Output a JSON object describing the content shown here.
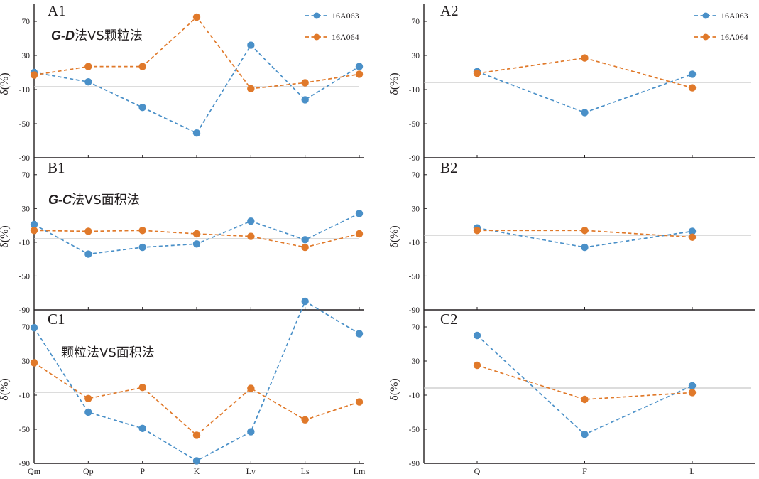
{
  "colors": {
    "s1": "#4a90c8",
    "s2": "#e0792a",
    "axis": "#231f20",
    "zero": "#c8c8c8"
  },
  "legend": [
    "16A063",
    "16A064"
  ],
  "y_axis_label": "δ(%)",
  "y_ticks": [
    "70",
    "30",
    "-10",
    "-50",
    "-90"
  ],
  "chart_data": [
    {
      "type": "line",
      "panel": "A1",
      "title": "A1",
      "annotation": {
        "italic": "G-D",
        "text": "法VS颗粒法"
      },
      "categories": [
        "Qm",
        "Qp",
        "P",
        "K",
        "Lv",
        "Ls",
        "Lm"
      ],
      "ylim": [
        -90,
        90
      ],
      "ylabel": "δ(%)",
      "legend": "top-right",
      "series": [
        {
          "name": "16A063",
          "values": [
            10,
            -1,
            -31,
            -61,
            42,
            -22,
            17
          ]
        },
        {
          "name": "16A064",
          "values": [
            7,
            17,
            17,
            75,
            -9,
            -2,
            8
          ]
        }
      ]
    },
    {
      "type": "line",
      "panel": "A2",
      "title": "A2",
      "categories": [
        "Q",
        "F",
        "L"
      ],
      "ylim": [
        -90,
        90
      ],
      "ylabel": "δ(%)",
      "legend": "top-right",
      "series": [
        {
          "name": "16A063",
          "values": [
            11,
            -37,
            8
          ]
        },
        {
          "name": "16A064",
          "values": [
            9,
            27,
            -8
          ]
        }
      ]
    },
    {
      "type": "line",
      "panel": "B1",
      "title": "B1",
      "annotation": {
        "italic": "G-C",
        "text": "法VS面积法"
      },
      "categories": [
        "Qm",
        "Qp",
        "P",
        "K",
        "Lv",
        "Ls",
        "Lm"
      ],
      "ylim": [
        -90,
        90
      ],
      "ylabel": "δ(%)",
      "series": [
        {
          "name": "16A063",
          "values": [
            11,
            -24,
            -16,
            -12,
            15,
            -7,
            24
          ]
        },
        {
          "name": "16A064",
          "values": [
            4,
            3,
            4,
            0,
            -3,
            -16,
            0
          ]
        }
      ]
    },
    {
      "type": "line",
      "panel": "B2",
      "title": "B2",
      "categories": [
        "Q",
        "F",
        "L"
      ],
      "ylim": [
        -90,
        90
      ],
      "ylabel": "δ(%)",
      "series": [
        {
          "name": "16A063",
          "values": [
            7,
            -16,
            3
          ]
        },
        {
          "name": "16A064",
          "values": [
            4,
            4,
            -4
          ]
        }
      ]
    },
    {
      "type": "line",
      "panel": "C1",
      "title": "C1",
      "annotation": {
        "italic": "",
        "text": "颗粒法VS面积法"
      },
      "categories": [
        "Qm",
        "Qp",
        "P",
        "K",
        "Lv",
        "Ls",
        "Lm"
      ],
      "ylim": [
        -90,
        90
      ],
      "ylabel": "δ(%)",
      "series": [
        {
          "name": "16A063",
          "values": [
            69,
            -30,
            -49,
            -87,
            -53,
            100,
            62
          ]
        },
        {
          "name": "16A064",
          "values": [
            28,
            -14,
            -1,
            -57,
            -2,
            -39,
            -18
          ]
        }
      ]
    },
    {
      "type": "line",
      "panel": "C2",
      "title": "C2",
      "categories": [
        "Q",
        "F",
        "L"
      ],
      "ylim": [
        -90,
        90
      ],
      "ylabel": "δ(%)",
      "series": [
        {
          "name": "16A063",
          "values": [
            60,
            -56,
            1
          ]
        },
        {
          "name": "16A064",
          "values": [
            25,
            -15,
            -7
          ]
        }
      ]
    }
  ]
}
